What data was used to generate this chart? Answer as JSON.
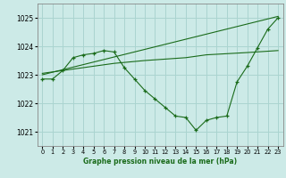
{
  "title": "Graphe pression niveau de la mer (hPa)",
  "background_color": "#cceae7",
  "grid_color": "#aad4d0",
  "line_color": "#1a6b1a",
  "xlim": [
    -0.5,
    23.5
  ],
  "ylim": [
    1020.5,
    1025.5
  ],
  "yticks": [
    1021,
    1022,
    1023,
    1024,
    1025
  ],
  "xticks": [
    0,
    1,
    2,
    3,
    4,
    5,
    6,
    7,
    8,
    9,
    10,
    11,
    12,
    13,
    14,
    15,
    16,
    17,
    18,
    19,
    20,
    21,
    22,
    23
  ],
  "line1_x": [
    0,
    1,
    2,
    3,
    4,
    5,
    6,
    7,
    8,
    9,
    10,
    11,
    12,
    13,
    14,
    15,
    16,
    17,
    18,
    19,
    20,
    21,
    22,
    23
  ],
  "line1_y": [
    1022.85,
    1022.85,
    1023.15,
    1023.6,
    1023.7,
    1023.75,
    1023.85,
    1023.8,
    1023.25,
    1022.85,
    1022.45,
    1022.15,
    1021.85,
    1021.55,
    1021.5,
    1021.05,
    1021.4,
    1021.5,
    1021.55,
    1022.75,
    1023.3,
    1023.95,
    1024.6,
    1025.0
  ],
  "line2_x": [
    0,
    2,
    3,
    4,
    5,
    6,
    7,
    10,
    14,
    15,
    16,
    17,
    18,
    19,
    20,
    23
  ],
  "line2_y": [
    1023.05,
    1023.15,
    1023.2,
    1023.25,
    1023.3,
    1023.35,
    1023.4,
    1023.5,
    1023.6,
    1023.65,
    1023.7,
    1023.72,
    1023.74,
    1023.76,
    1023.78,
    1023.85
  ],
  "line3_x": [
    0,
    23
  ],
  "line3_y": [
    1023.0,
    1025.05
  ]
}
